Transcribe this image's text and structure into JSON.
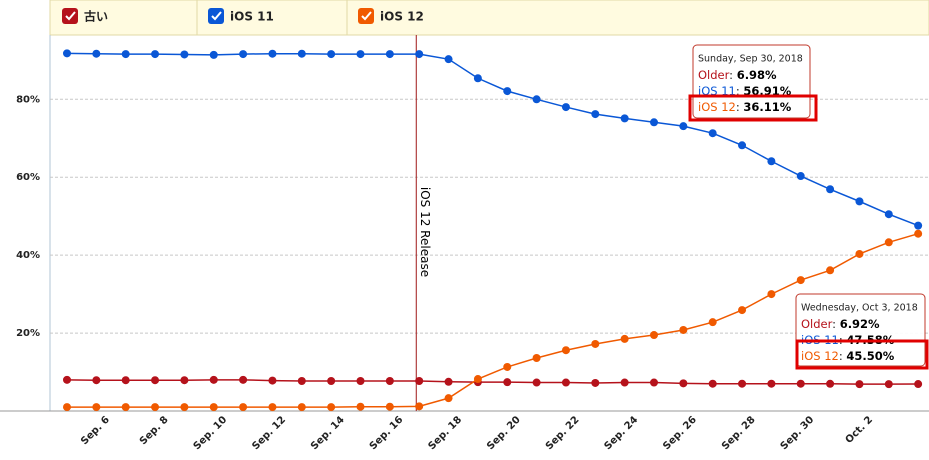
{
  "chart_data": {
    "type": "line",
    "categories": [
      null,
      null,
      "Sep. 6",
      null,
      "Sep. 8",
      null,
      "Sep. 10",
      null,
      "Sep. 12",
      null,
      "Sep. 14",
      null,
      "Sep. 16",
      null,
      "Sep. 18",
      null,
      "Sep. 20",
      null,
      "Sep. 22",
      null,
      "Sep. 24",
      null,
      "Sep. 26",
      null,
      "Sep. 28",
      null,
      "Sep. 30",
      null,
      "Oct. 2",
      null
    ],
    "series": [
      {
        "name": "古い",
        "color": "#b5121b",
        "values": [
          8.0,
          7.9,
          7.9,
          7.9,
          7.9,
          8.0,
          8.0,
          7.8,
          7.7,
          7.7,
          7.7,
          7.7,
          7.7,
          7.5,
          7.4,
          7.4,
          7.3,
          7.3,
          7.2,
          7.3,
          7.3,
          7.1,
          7.0,
          7.0,
          7.0,
          7.0,
          6.98,
          6.9,
          6.9,
          6.92
        ]
      },
      {
        "name": "iOS 11",
        "color": "#0a57d6",
        "values": [
          91.8,
          91.7,
          91.6,
          91.6,
          91.5,
          91.4,
          91.6,
          91.7,
          91.7,
          91.6,
          91.6,
          91.6,
          91.6,
          90.3,
          85.4,
          82.1,
          80.0,
          78.0,
          76.2,
          75.1,
          74.1,
          73.1,
          71.3,
          68.2,
          64.1,
          60.3,
          56.91,
          53.8,
          50.5,
          47.58
        ]
      },
      {
        "name": "iOS 12",
        "color": "#f05a00",
        "values": [
          1.0,
          1.0,
          1.0,
          1.0,
          1.0,
          1.0,
          1.0,
          1.0,
          1.0,
          1.0,
          1.1,
          1.1,
          1.2,
          3.3,
          8.2,
          11.3,
          13.6,
          15.6,
          17.2,
          18.5,
          19.5,
          20.8,
          22.8,
          25.9,
          30.0,
          33.6,
          36.11,
          40.3,
          43.3,
          45.5
        ]
      }
    ],
    "ylim": [
      0,
      96.5
    ],
    "yticks": [
      {
        "value": 20,
        "label": "20%"
      },
      {
        "value": 40,
        "label": "40%"
      },
      {
        "value": 60,
        "label": "60%"
      },
      {
        "value": 80,
        "label": "80%"
      }
    ],
    "grid": true,
    "annotations": [
      {
        "text": "iOS 12 Release"
      }
    ],
    "tooltips": [
      {
        "date": "Sunday, Sep 30, 2018",
        "items": [
          {
            "name": "Older",
            "label": "6.98%"
          },
          {
            "name": "iOS 11",
            "label": "56.91%"
          },
          {
            "name": "iOS 12",
            "label": "36.11%"
          }
        ]
      },
      {
        "date": "Wednesday, Oct 3, 2018",
        "items": [
          {
            "name": "Older",
            "label": "6.92%"
          },
          {
            "name": "iOS 11",
            "label": "47.58%"
          },
          {
            "name": "iOS 12",
            "label": "45.50%"
          }
        ]
      }
    ]
  }
}
